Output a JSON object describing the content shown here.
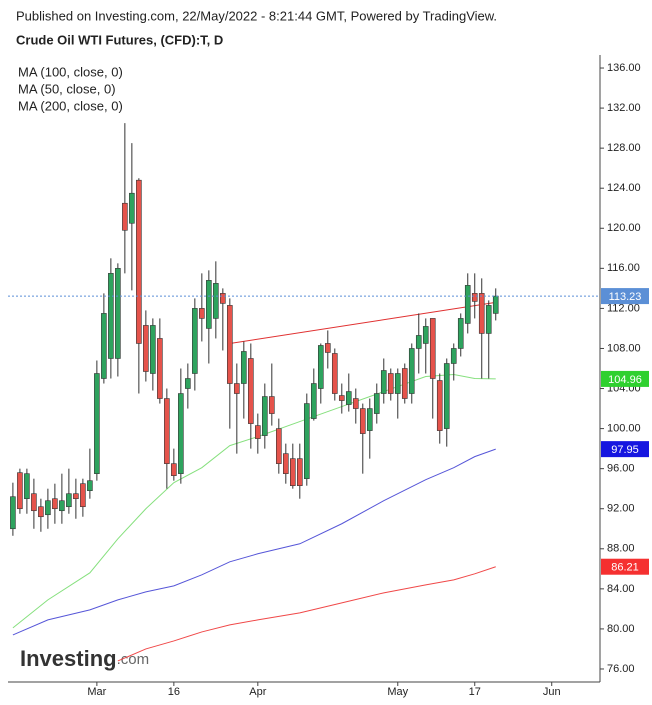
{
  "header": "Published on Investing.com, 22/May/2022 - 8:21:44 GMT, Powered by TradingView.",
  "watermark": {
    "brand": "Investing",
    "suffix": ".com"
  },
  "chart_data": {
    "type": "candlestick",
    "title": "Crude Oil WTI Futures, (CFD):T, D",
    "up_color": "#2ea35e",
    "down_color": "#e5534b",
    "last_price_color": "#5b8fd6",
    "x": [
      0,
      1,
      2,
      3,
      4,
      5,
      6,
      7,
      8,
      9,
      10,
      11,
      12,
      13,
      14,
      15,
      16,
      17,
      18,
      19,
      20,
      21,
      22,
      23,
      24,
      25,
      26,
      27,
      28,
      29,
      30,
      31,
      32,
      33,
      34,
      35,
      36,
      37,
      38,
      39,
      40,
      41,
      42,
      43,
      44,
      45,
      46,
      47,
      48,
      49,
      50,
      51,
      52,
      53,
      54,
      55,
      56,
      57,
      58,
      59,
      60,
      61,
      62,
      63,
      64,
      65,
      66,
      67,
      68,
      69
    ],
    "open": [
      90.0,
      95.6,
      93.0,
      93.5,
      92.2,
      91.4,
      93.0,
      91.8,
      92.2,
      93.5,
      94.5,
      93.8,
      95.5,
      105.0,
      107.0,
      107.0,
      122.5,
      120.5,
      124.8,
      110.3,
      105.5,
      109.0,
      103.0,
      96.5,
      95.5,
      104.0,
      105.5,
      112.0,
      110.0,
      111.0,
      113.5,
      112.3,
      104.5,
      104.5,
      107.0,
      100.3,
      99.3,
      103.2,
      100.0,
      97.5,
      97.0,
      97.0,
      95.0,
      101.0,
      104.0,
      108.5,
      107.5,
      103.3,
      102.4,
      103.0,
      102.0,
      99.8,
      101.5,
      103.5,
      105.5,
      103.5,
      106.0,
      103.5,
      108.0,
      108.5,
      111.0,
      104.8,
      100.0,
      106.5,
      108.0,
      110.5,
      113.5,
      113.5,
      109.5,
      111.5
    ],
    "high": [
      94.6,
      96.0,
      96.0,
      95.0,
      93.0,
      94.0,
      94.5,
      95.5,
      96.0,
      95.0,
      95.0,
      98.0,
      106.8,
      113.5,
      117.0,
      116.5,
      130.5,
      128.5,
      125.0,
      111.8,
      111.0,
      111.0,
      104.0,
      98.0,
      106.0,
      106.5,
      113.0,
      115.5,
      115.8,
      116.7,
      114.0,
      113.0,
      106.5,
      108.7,
      108.5,
      101.5,
      104.5,
      106.5,
      101.0,
      98.5,
      98.5,
      98.5,
      103.5,
      106.0,
      108.5,
      109.8,
      108.0,
      104.5,
      105.5,
      104.0,
      102.5,
      103.0,
      104.5,
      107.0,
      106.0,
      106.0,
      106.5,
      108.5,
      111.5,
      111.0,
      111.0,
      105.5,
      107.0,
      108.5,
      111.5,
      115.5,
      115.5,
      115.0,
      112.8,
      114.0
    ],
    "low": [
      89.3,
      91.5,
      91.5,
      90.0,
      89.7,
      90.0,
      90.5,
      90.5,
      91.5,
      91.0,
      91.2,
      93.0,
      94.8,
      104.5,
      105.0,
      105.2,
      115.5,
      113.8,
      103.5,
      104.7,
      103.8,
      102.5,
      94.0,
      94.8,
      94.5,
      102.0,
      103.8,
      108.7,
      106.5,
      109.0,
      107.8,
      100.0,
      97.5,
      101.0,
      98.0,
      97.5,
      98.0,
      100.3,
      95.5,
      94.5,
      94.0,
      93.0,
      94.3,
      100.8,
      102.5,
      106.0,
      102.8,
      101.5,
      101.7,
      100.5,
      95.5,
      97.0,
      100.5,
      102.5,
      102.8,
      101.0,
      102.5,
      102.5,
      105.5,
      105.5,
      101.0,
      98.5,
      98.2,
      104.8,
      107.2,
      109.5,
      111.0,
      105.0,
      105.0,
      110.8
    ],
    "close": [
      93.2,
      92.0,
      95.5,
      91.8,
      91.2,
      92.8,
      92.0,
      92.8,
      93.5,
      93.0,
      92.2,
      94.8,
      105.5,
      111.5,
      115.5,
      116.0,
      119.8,
      123.5,
      108.5,
      105.7,
      110.3,
      103.0,
      96.5,
      95.3,
      103.5,
      105.0,
      112.0,
      111.0,
      114.8,
      114.5,
      112.5,
      104.5,
      103.5,
      107.7,
      100.5,
      99.0,
      103.2,
      101.5,
      96.5,
      95.5,
      94.3,
      94.3,
      102.5,
      104.5,
      108.3,
      107.6,
      103.5,
      102.8,
      103.7,
      102.0,
      99.5,
      102.0,
      103.5,
      105.8,
      103.5,
      105.5,
      103.0,
      108.0,
      109.3,
      110.2,
      105.0,
      99.8,
      106.5,
      108.0,
      111.0,
      114.3,
      112.7,
      109.5,
      112.3,
      113.23
    ],
    "series": [
      {
        "name": "MA (100, close, 0)",
        "color": "#5656d8",
        "label_color": "#1616e0",
        "x": [
          0,
          5,
          11,
          15,
          19,
          23,
          27,
          31,
          35,
          41,
          47,
          53,
          59,
          63,
          66,
          69
        ],
        "values": [
          79.4,
          80.9,
          81.9,
          82.9,
          83.7,
          84.3,
          85.4,
          86.7,
          87.5,
          88.5,
          90.5,
          92.8,
          94.9,
          96.1,
          97.2,
          97.95
        ]
      },
      {
        "name": "MA (50, close, 0)",
        "color": "#86e07e",
        "label_color": "#2fd02f",
        "x": [
          0,
          5,
          11,
          15,
          19,
          23,
          27,
          31,
          35,
          41,
          47,
          53,
          59,
          63,
          66,
          69
        ],
        "values": [
          80.1,
          82.9,
          85.6,
          89.0,
          92.0,
          94.6,
          96.1,
          98.3,
          99.2,
          100.7,
          102.2,
          103.7,
          105.2,
          105.4,
          105.0,
          104.96
        ]
      },
      {
        "name": "MA (200, close, 0)",
        "color": "#f04848",
        "label_color": "#f53030",
        "x": [
          15,
          19,
          23,
          27,
          31,
          35,
          41,
          47,
          53,
          59,
          63,
          66,
          69
        ],
        "values": [
          76.8,
          78.0,
          78.8,
          79.7,
          80.4,
          80.9,
          81.6,
          82.6,
          83.6,
          84.4,
          84.9,
          85.5,
          86.21
        ]
      }
    ],
    "trendline": {
      "color": "#e03030",
      "x": [
        31,
        69
      ],
      "values": [
        108.5,
        112.6
      ]
    },
    "xlim": [
      -0.7,
      83.9
    ],
    "xticks": [
      {
        "value": 12,
        "label": "Mar"
      },
      {
        "value": 23,
        "label": "16"
      },
      {
        "value": 35,
        "label": "Apr"
      },
      {
        "value": 55,
        "label": "May"
      },
      {
        "value": 66,
        "label": "17"
      },
      {
        "value": 77,
        "label": "Jun"
      }
    ],
    "ylim": [
      74.7,
      137.3
    ],
    "yticks": [
      {
        "value": 76,
        "label": "76.00"
      },
      {
        "value": 80,
        "label": "80.00"
      },
      {
        "value": 84,
        "label": "84.00"
      },
      {
        "value": 88,
        "label": "88.00"
      },
      {
        "value": 92,
        "label": "92.00"
      },
      {
        "value": 96,
        "label": "96.00"
      },
      {
        "value": 100,
        "label": "100.00"
      },
      {
        "value": 104,
        "label": "104.00"
      },
      {
        "value": 108,
        "label": "108.00"
      },
      {
        "value": 112,
        "label": "112.00"
      },
      {
        "value": 116,
        "label": "116.00"
      },
      {
        "value": 120,
        "label": "120.00"
      },
      {
        "value": 124,
        "label": "124.00"
      },
      {
        "value": 128,
        "label": "128.00"
      },
      {
        "value": 132,
        "label": "132.00"
      },
      {
        "value": 136,
        "label": "136.00"
      }
    ]
  }
}
